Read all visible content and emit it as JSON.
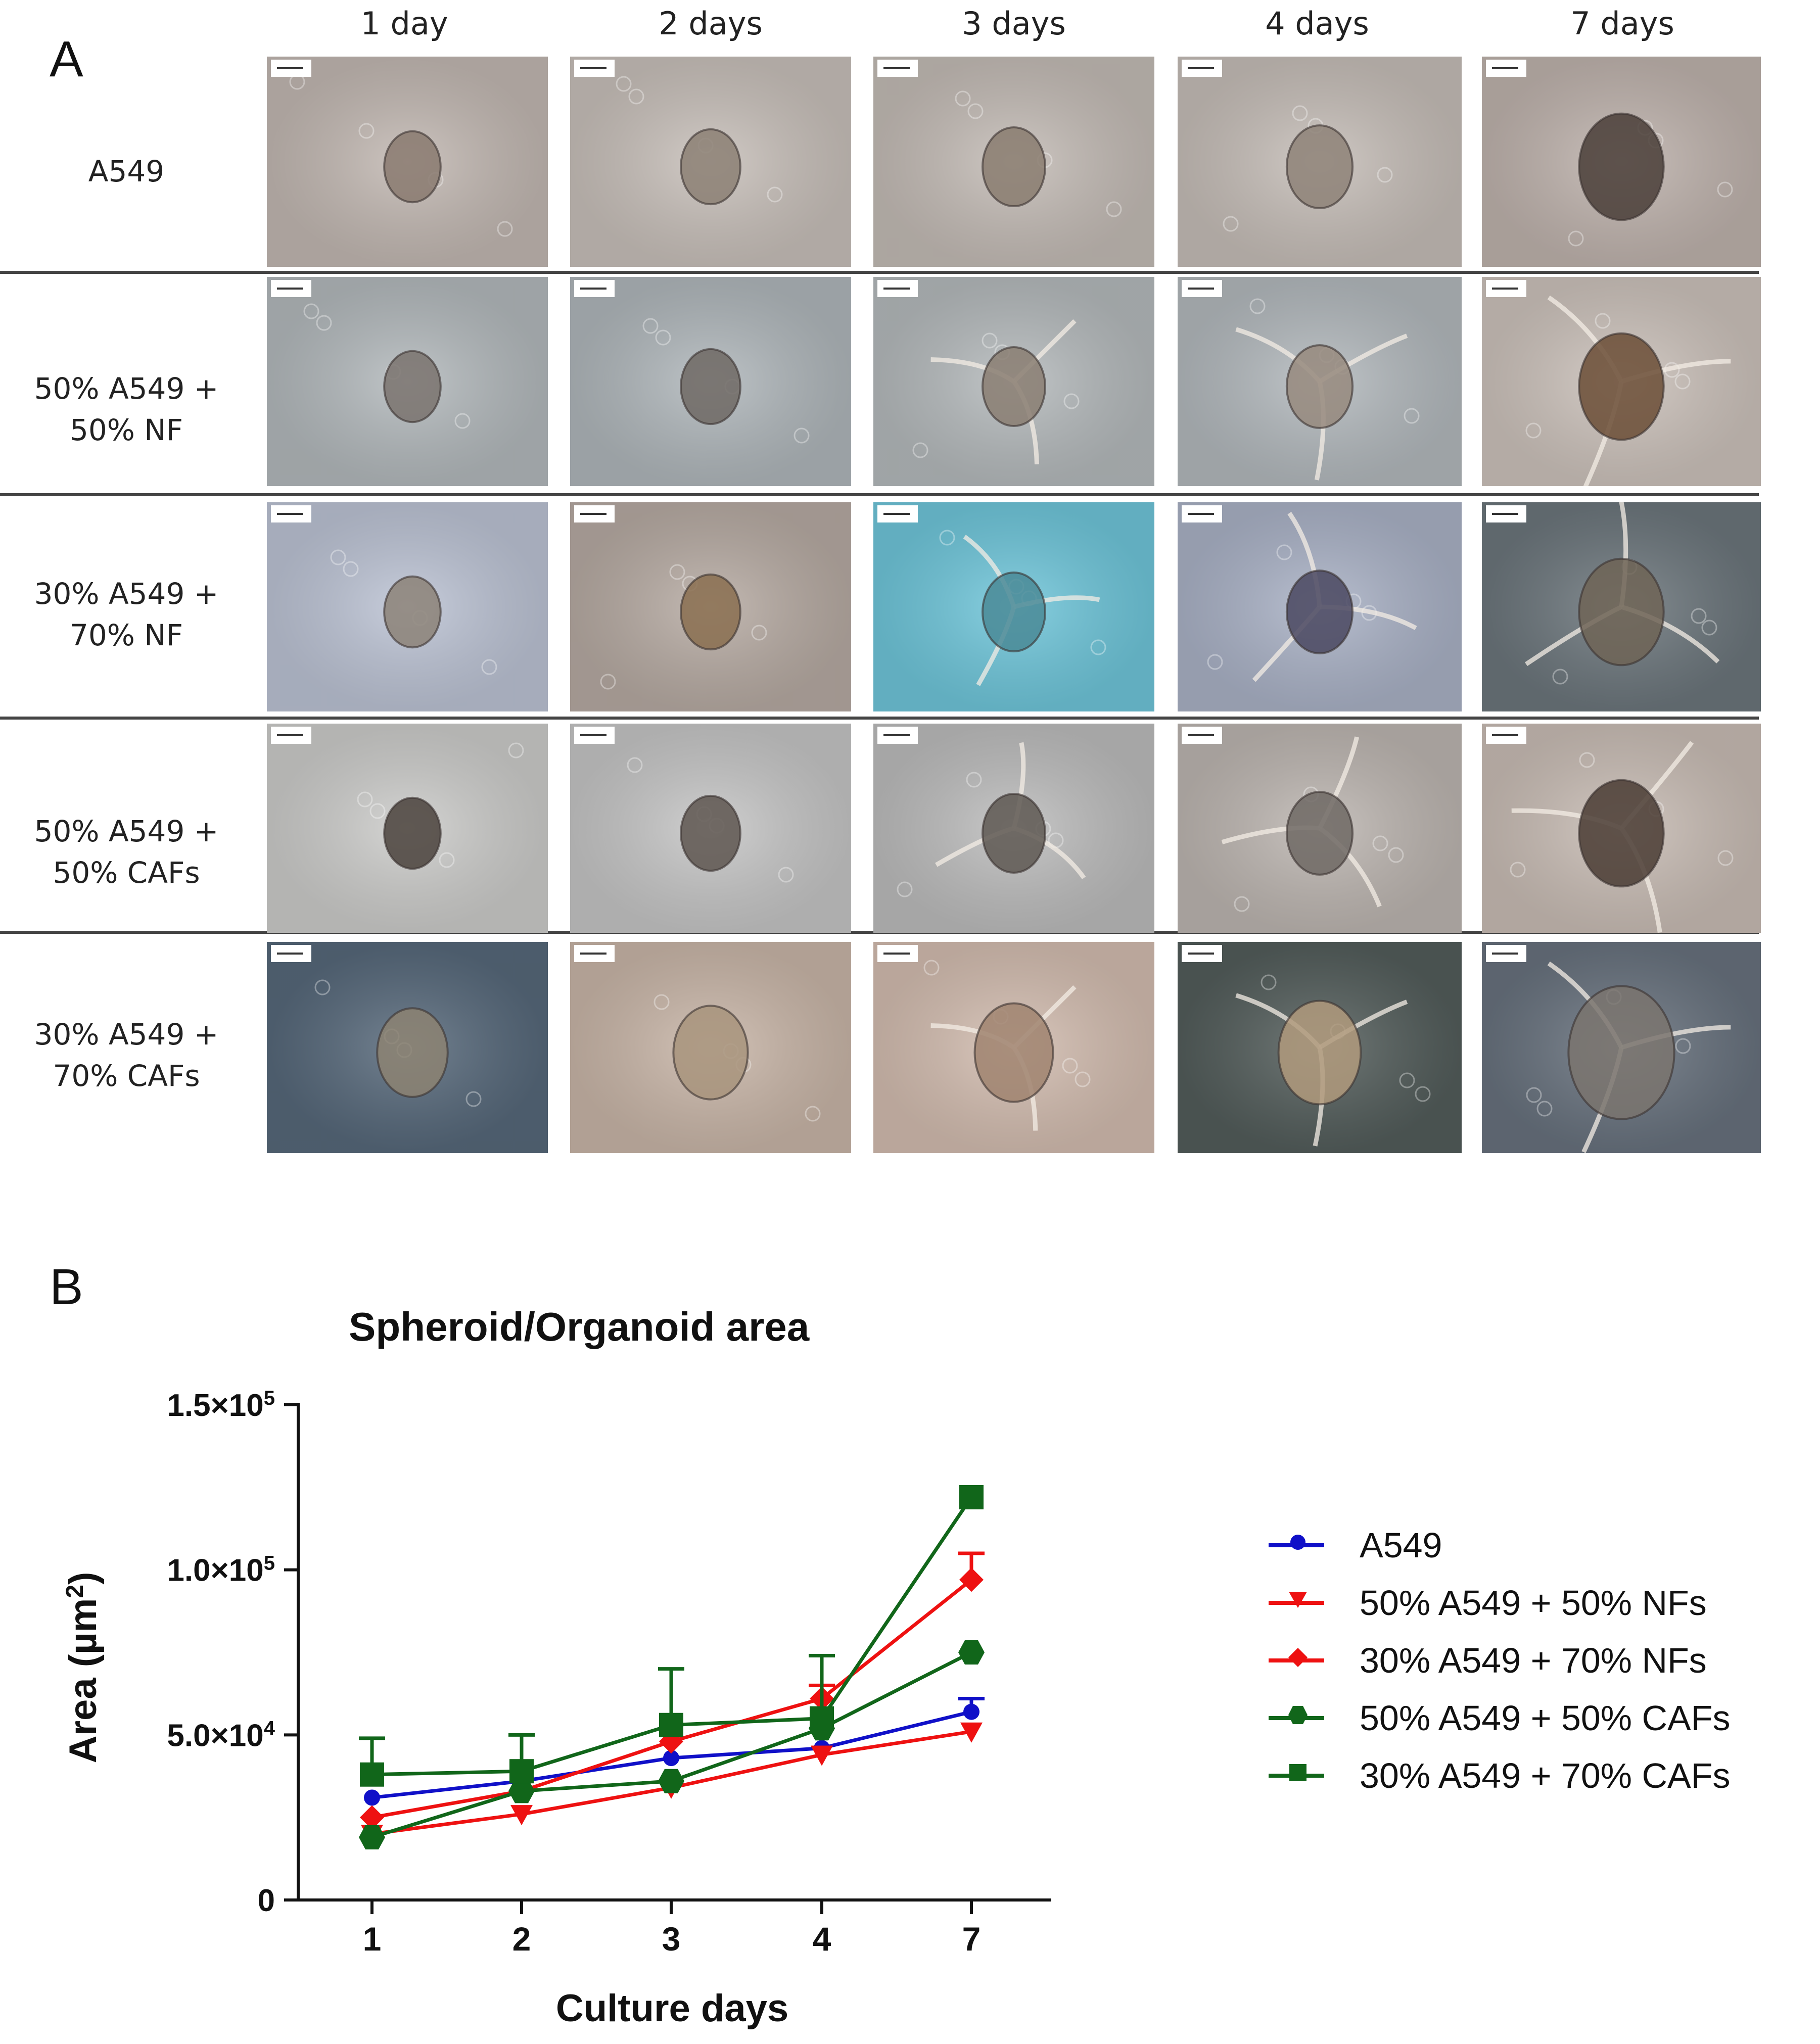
{
  "panel_a": {
    "letter": "A",
    "columns": [
      "1 day",
      "2 days",
      "3 days",
      "4 days",
      "7 days"
    ],
    "rows": [
      {
        "lines": [
          "A549"
        ]
      },
      {
        "lines": [
          "50% A549 +",
          "50% NF"
        ]
      },
      {
        "lines": [
          "30% A549 +",
          "70% NF"
        ]
      },
      {
        "lines": [
          "50% A549 +",
          "50% CAFs"
        ]
      },
      {
        "lines": [
          "30% A549 +",
          "70% CAFs"
        ]
      }
    ],
    "background_colors": [
      [
        "#c2b8b2",
        "#c8c0ba",
        "#c4bcb6",
        "#c6beb8",
        "#bfb3ad"
      ],
      [
        "#b3b9bc",
        "#b0b7bb",
        "#b5babc",
        "#b3b9bd",
        "#ccc2bb"
      ],
      [
        "#bcc3d4",
        "#b7aba3",
        "#6fc6da",
        "#aab2c6",
        "#6c767c"
      ],
      [
        "#ccccca",
        "#c6c6c6",
        "#bdbdbd",
        "#bdb6b1",
        "#c9bdb5"
      ],
      [
        "#56687a",
        "#c9b6a8",
        "#d3bdb0",
        "#535d5b",
        "#68727e"
      ]
    ],
    "spheroid_colors": [
      [
        "#8a7a70",
        "#8c8074",
        "#8a7c70",
        "#8e8278",
        "#4a3e38"
      ],
      [
        "#7a736e",
        "#6e6864",
        "#8a7e72",
        "#968a7e",
        "#6b4e36"
      ],
      [
        "#8c8278",
        "#8a6e50",
        "#4a8a96",
        "#4a4860",
        "#6e6456"
      ],
      [
        "#4a423c",
        "#5e5650",
        "#5e5852",
        "#6e6864",
        "#4a3c34"
      ],
      [
        "#8c8272",
        "#a8947c",
        "#a08470",
        "#b09a7c",
        "#7a746e"
      ]
    ]
  },
  "panel_b": {
    "letter": "B"
  },
  "chart_data": {
    "type": "line",
    "title": "Spheroid/Organoid area",
    "xlabel": "Culture days",
    "ylabel": "Area (µm",
    "ylabel_sup": "2",
    "ylabel_end": ")",
    "categories": [
      "1",
      "2",
      "3",
      "4",
      "7"
    ],
    "ylim": [
      0,
      150000
    ],
    "y_ticks": [
      {
        "value": 0,
        "label": "0"
      },
      {
        "value": 50000,
        "label": "5.0×10",
        "exp": "4"
      },
      {
        "value": 100000,
        "label": "1.0×10",
        "exp": "5"
      },
      {
        "value": 150000,
        "label": "1.5×10",
        "exp": "5"
      }
    ],
    "series": [
      {
        "name": "A549",
        "color": "#1010c8",
        "marker": "circle-small",
        "values": [
          31000,
          36000,
          43000,
          46000,
          57000
        ],
        "errors": [
          0,
          0,
          0,
          0,
          4000
        ]
      },
      {
        "name": "50% A549 + 50% NFs",
        "color": "#ee1111",
        "marker": "triangle-down",
        "values": [
          20000,
          26000,
          34000,
          44000,
          51000
        ],
        "errors": [
          0,
          0,
          0,
          0,
          0
        ]
      },
      {
        "name": "30% A549 + 70% NFs",
        "color": "#ee1111",
        "marker": "diamond",
        "values": [
          25000,
          33000,
          48000,
          61000,
          97000
        ],
        "errors": [
          0,
          0,
          0,
          4000,
          8000
        ]
      },
      {
        "name": "50% A549 + 50% CAFs",
        "color": "#11661a",
        "marker": "hexagon",
        "values": [
          19000,
          33000,
          36000,
          52000,
          75000
        ],
        "errors": [
          0,
          0,
          0,
          0,
          0
        ]
      },
      {
        "name": "30% A549 + 70% CAFs",
        "color": "#11661a",
        "marker": "square",
        "values": [
          38000,
          39000,
          53000,
          55000,
          122000
        ],
        "errors": [
          11000,
          11000,
          17000,
          19000,
          0
        ]
      }
    ]
  }
}
